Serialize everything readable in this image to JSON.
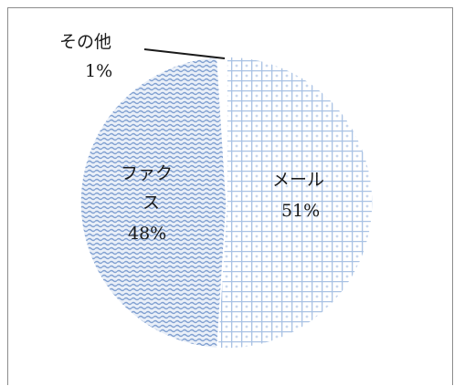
{
  "chart_data": {
    "type": "pie",
    "slices": [
      {
        "label": "メール",
        "pct_label": "51%",
        "value": 51,
        "pattern": "grid",
        "color": "#a9c2e4"
      },
      {
        "label": "ファクス",
        "pct_label": "48%",
        "value": 48,
        "pattern": "wave",
        "color": "#7f9fd0"
      },
      {
        "label": "その他",
        "pct_label": "1%",
        "value": 1,
        "pattern": "none",
        "color": "#ffffff"
      }
    ]
  }
}
